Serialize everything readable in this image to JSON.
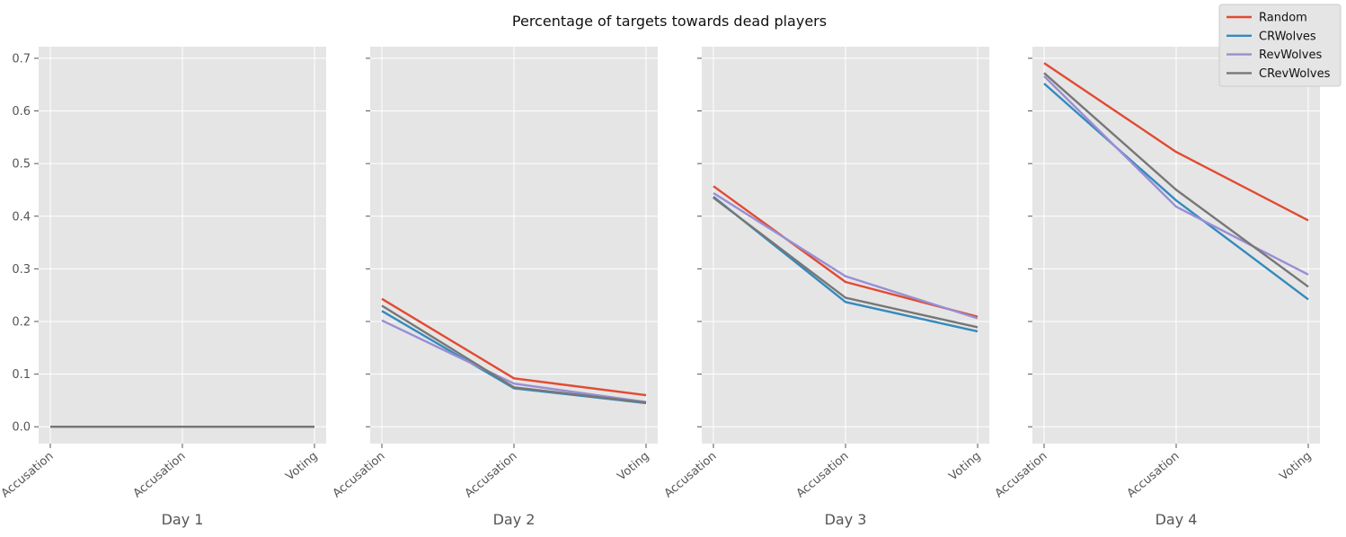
{
  "chart_data": {
    "type": "line",
    "title": "Percentage of targets towards dead players",
    "ylim": [
      -0.032,
      0.722
    ],
    "yticks": [
      0.0,
      0.1,
      0.2,
      0.3,
      0.4,
      0.5,
      0.6,
      0.7
    ],
    "ytick_labels": [
      "0.0",
      "0.1",
      "0.2",
      "0.3",
      "0.4",
      "0.5",
      "0.6",
      "0.7"
    ],
    "grid": true,
    "legend_position": "top-right",
    "series_colors": {
      "Random": "#e24a33",
      "CRWolves": "#348abd",
      "RevWolves": "#988ed5",
      "CRevWolves": "#777777"
    },
    "series_order": [
      "Random",
      "CRWolves",
      "RevWolves",
      "CRevWolves"
    ],
    "panels": [
      {
        "xlabel": "Day 1",
        "categories": [
          "Accusation",
          "Accusation",
          "Voting"
        ],
        "series": [
          {
            "name": "Random",
            "values": [
              0.0,
              0.0,
              0.0
            ]
          },
          {
            "name": "CRWolves",
            "values": [
              0.0,
              0.0,
              0.0
            ]
          },
          {
            "name": "RevWolves",
            "values": [
              0.0,
              0.0,
              0.0
            ]
          },
          {
            "name": "CRevWolves",
            "values": [
              0.0,
              0.0,
              0.0
            ]
          }
        ]
      },
      {
        "xlabel": "Day 2",
        "categories": [
          "Accusation",
          "Accusation",
          "Voting"
        ],
        "series": [
          {
            "name": "Random",
            "values": [
              0.243,
              0.092,
              0.06
            ]
          },
          {
            "name": "CRWolves",
            "values": [
              0.22,
              0.073,
              0.045
            ]
          },
          {
            "name": "RevWolves",
            "values": [
              0.202,
              0.082,
              0.047
            ]
          },
          {
            "name": "CRevWolves",
            "values": [
              0.23,
              0.075,
              0.046
            ]
          }
        ]
      },
      {
        "xlabel": "Day 3",
        "categories": [
          "Accusation",
          "Accusation",
          "Voting"
        ],
        "series": [
          {
            "name": "Random",
            "values": [
              0.457,
              0.275,
              0.209
            ]
          },
          {
            "name": "CRWolves",
            "values": [
              0.437,
              0.237,
              0.181
            ]
          },
          {
            "name": "RevWolves",
            "values": [
              0.444,
              0.286,
              0.206
            ]
          },
          {
            "name": "CRevWolves",
            "values": [
              0.435,
              0.245,
              0.189
            ]
          }
        ]
      },
      {
        "xlabel": "Day 4",
        "categories": [
          "Accusation",
          "Accusation",
          "Voting"
        ],
        "series": [
          {
            "name": "Random",
            "values": [
              0.691,
              0.522,
              0.392
            ]
          },
          {
            "name": "CRWolves",
            "values": [
              0.652,
              0.43,
              0.242
            ]
          },
          {
            "name": "RevWolves",
            "values": [
              0.666,
              0.418,
              0.289
            ]
          },
          {
            "name": "CRevWolves",
            "values": [
              0.672,
              0.45,
              0.266
            ]
          }
        ]
      }
    ]
  }
}
